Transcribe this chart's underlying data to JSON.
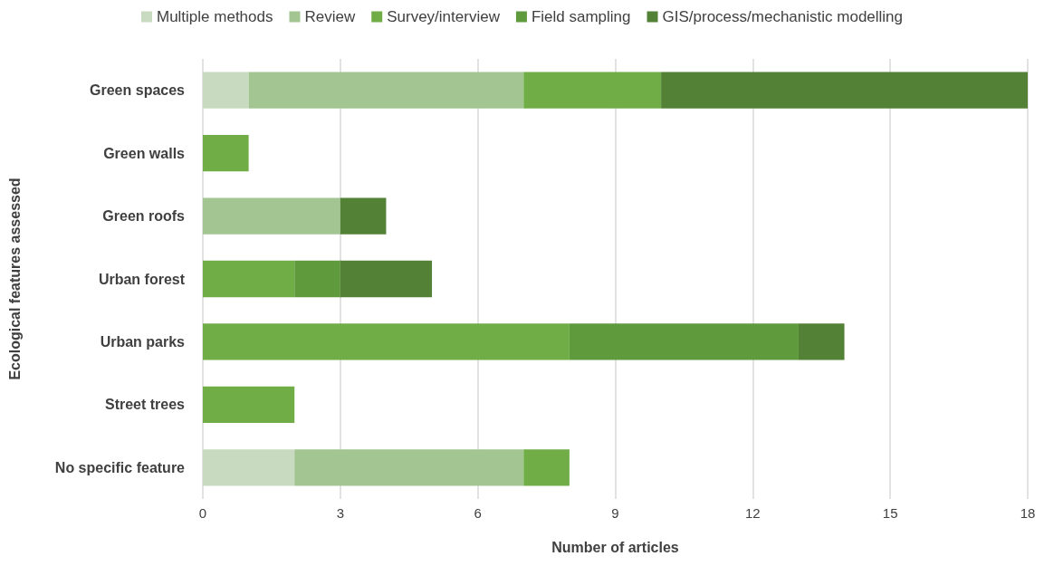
{
  "chart_data": {
    "type": "bar",
    "orientation": "horizontal",
    "stacked": true,
    "xlabel": "Number of articles",
    "ylabel": "Ecological features assessed",
    "categories": [
      "Green spaces",
      "Green walls",
      "Green roofs",
      "Urban forest",
      "Urban parks",
      "Street trees",
      "No specific feature"
    ],
    "series": [
      {
        "name": "Multiple methods",
        "color": "#c8dbc0",
        "values": [
          1,
          0,
          0,
          0,
          0,
          0,
          2
        ]
      },
      {
        "name": "Review",
        "color": "#a2c592",
        "values": [
          6,
          0,
          3,
          0,
          0,
          0,
          5
        ]
      },
      {
        "name": "Survey/interview",
        "color": "#70ad47",
        "values": [
          3,
          1,
          0,
          2,
          8,
          2,
          1
        ]
      },
      {
        "name": "Field sampling",
        "color": "#5f9a3c",
        "values": [
          0,
          0,
          0,
          1,
          5,
          0,
          0
        ]
      },
      {
        "name": "GIS/process/mechanistic modelling",
        "color": "#538135",
        "values": [
          8,
          0,
          1,
          2,
          1,
          0,
          0
        ]
      }
    ],
    "xlim": [
      0,
      18
    ],
    "xticks": [
      0,
      3,
      6,
      9,
      12,
      15,
      18
    ],
    "grid": "x",
    "legend": "top"
  }
}
